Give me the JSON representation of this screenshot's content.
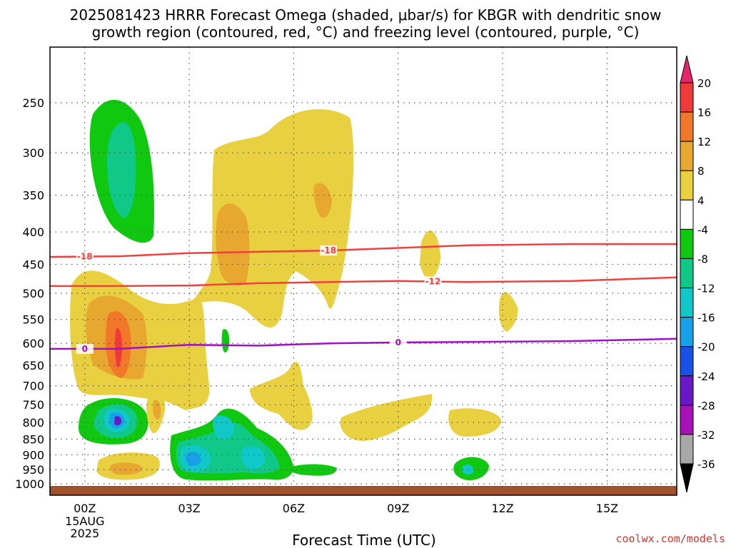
{
  "title_line1": "2025081423 HRRR Forecast Omega (shaded, μbar/s) for KBGR with dendritic snow",
  "title_line2": "growth region (contoured, red, °C) and freezing level (contoured, purple, °C)",
  "credit": "coolwx.com/models",
  "chart_data": {
    "type": "contour",
    "xlabel": "Forecast Time (UTC)",
    "x_ticks": [
      "00Z",
      "03Z",
      "06Z",
      "09Z",
      "12Z",
      "15Z"
    ],
    "x_tick_hours": [
      0,
      3,
      6,
      9,
      12,
      15
    ],
    "x_date_lines": [
      "15AUG",
      "2025"
    ],
    "xlim_hours": [
      -1,
      17
    ],
    "y_ticks": [
      250,
      300,
      350,
      400,
      450,
      500,
      550,
      600,
      650,
      700,
      750,
      800,
      850,
      900,
      950,
      1000
    ],
    "ylim_hPa": [
      1000,
      200
    ],
    "colorbar": {
      "labels": [
        "20",
        "16",
        "12",
        "8",
        "4",
        "-4",
        "-8",
        "-12",
        "-16",
        "-20",
        "-24",
        "-28",
        "-32",
        "-36"
      ],
      "colors": [
        "#e8246a",
        "#f03a3a",
        "#f07828",
        "#e8a830",
        "#e8d040",
        "#ffffff",
        "#10c810",
        "#10c888",
        "#10c8c8",
        "#18a0e8",
        "#1850e8",
        "#6818c8",
        "#a810b8",
        "#a8a8a8",
        "#000000"
      ]
    },
    "contours": [
      {
        "label": "-18",
        "color": "#f04040",
        "hour_label_positions": [
          0,
          7
        ],
        "pressure": [
          438,
          437,
          432,
          430,
          428,
          424,
          420,
          418,
          418
        ]
      },
      {
        "label": "-12",
        "color": "#f04040",
        "hour_label_positions": [
          10
        ],
        "pressure": [
          487,
          487,
          486,
          482,
          480,
          478,
          480,
          478,
          472
        ]
      },
      {
        "label": "0",
        "color": "#a010c8",
        "hour_label_positions": [
          0,
          9
        ],
        "pressure": [
          612,
          612,
          603,
          605,
          600,
          598,
          597,
          595,
          590
        ]
      }
    ],
    "contour_hours": [
      -1,
      1,
      3,
      5,
      7,
      9,
      11,
      14,
      17
    ],
    "omega_regions": [
      {
        "level": "-8",
        "center_hour": 1.2,
        "center_hPa": 325,
        "note": "upward motion"
      },
      {
        "level": "-20",
        "center_hour": 1.0,
        "center_hPa": 790
      },
      {
        "level": "16",
        "center_hour": 1.0,
        "center_hPa": 600
      },
      {
        "level": "8",
        "center_hour": 4.2,
        "center_hPa": 400
      },
      {
        "level": "-16",
        "center_hour": 3.5,
        "center_hPa": 920
      },
      {
        "level": "-12",
        "center_hour": 11.0,
        "center_hPa": 950
      }
    ]
  }
}
